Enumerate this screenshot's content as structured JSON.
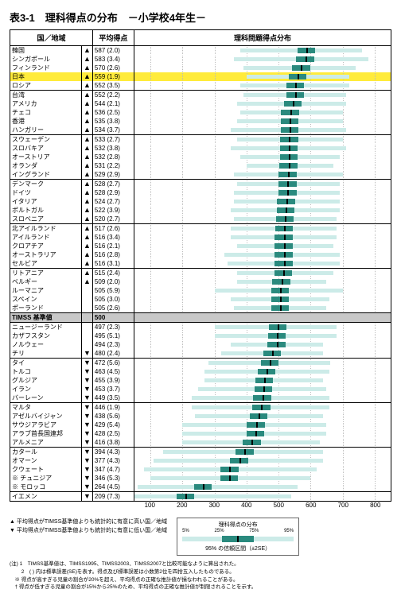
{
  "title": "表3-1　理科得点の分布　－小学校4年生－",
  "columns": {
    "country": "国／地域",
    "score": "平均得点",
    "dist": "理科問題得点分布"
  },
  "axis": {
    "min": 50,
    "max": 850,
    "ticks": [
      100,
      200,
      300,
      400,
      500,
      600,
      700,
      800
    ]
  },
  "colors": {
    "dist_fill": "#ccebe8",
    "ci_fill": "#2a8a7e",
    "mean_fill": "#000000",
    "highlight_bg": "#ffeb3b",
    "benchmark_bg": "#c8c8c8",
    "grid": "#bbbbbb"
  },
  "rows": [
    {
      "c": "韓国",
      "m": "▲",
      "s": 587,
      "se": "(2.0)",
      "lo": 380,
      "hi": 760,
      "sep": true
    },
    {
      "c": "シンガポール",
      "m": "▲",
      "s": 583,
      "se": "(3.4)",
      "lo": 360,
      "hi": 780
    },
    {
      "c": "フィンランド",
      "m": "▲",
      "s": 570,
      "se": "(2.6)",
      "lo": 390,
      "hi": 740
    },
    {
      "c": "日本",
      "m": "▲",
      "s": 559,
      "se": "(1.9)",
      "lo": 400,
      "hi": 720,
      "hl": true
    },
    {
      "c": "ロシア",
      "m": "▲",
      "s": 552,
      "se": "(3.5)",
      "lo": 380,
      "hi": 720
    },
    {
      "c": "台湾",
      "m": "▲",
      "s": 552,
      "se": "(2.2)",
      "lo": 390,
      "hi": 710,
      "sep": true
    },
    {
      "c": "アメリカ",
      "m": "▲",
      "s": 544,
      "se": "(2.1)",
      "lo": 370,
      "hi": 710
    },
    {
      "c": "チェコ",
      "m": "▲",
      "s": 536,
      "se": "(2.5)",
      "lo": 380,
      "hi": 700
    },
    {
      "c": "香港",
      "m": "▲",
      "s": 535,
      "se": "(3.8)",
      "lo": 370,
      "hi": 700
    },
    {
      "c": "ハンガリー",
      "m": "▲",
      "s": 534,
      "se": "(3.7)",
      "lo": 350,
      "hi": 710
    },
    {
      "c": "スウェーデン",
      "m": "▲",
      "s": 533,
      "se": "(2.7)",
      "lo": 370,
      "hi": 700,
      "sep": true
    },
    {
      "c": "スロバキア",
      "m": "▲",
      "s": 532,
      "se": "(3.8)",
      "lo": 350,
      "hi": 710
    },
    {
      "c": "オーストリア",
      "m": "▲",
      "s": 532,
      "se": "(2.8)",
      "lo": 380,
      "hi": 690
    },
    {
      "c": "オランダ",
      "m": "▲",
      "s": 531,
      "se": "(2.2)",
      "lo": 400,
      "hi": 670
    },
    {
      "c": "イングランド",
      "m": "▲",
      "s": 529,
      "se": "(2.9)",
      "lo": 360,
      "hi": 700
    },
    {
      "c": "デンマーク",
      "m": "▲",
      "s": 528,
      "se": "(2.7)",
      "lo": 370,
      "hi": 690,
      "sep": true
    },
    {
      "c": "ドイツ",
      "m": "▲",
      "s": 528,
      "se": "(2.9)",
      "lo": 360,
      "hi": 690
    },
    {
      "c": "イタリア",
      "m": "▲",
      "s": 524,
      "se": "(2.7)",
      "lo": 360,
      "hi": 690
    },
    {
      "c": "ポルトガル",
      "m": "▲",
      "s": 522,
      "se": "(3.9)",
      "lo": 350,
      "hi": 690
    },
    {
      "c": "スロベニア",
      "m": "▲",
      "s": 520,
      "se": "(2.7)",
      "lo": 360,
      "hi": 680
    },
    {
      "c": "北アイルランド",
      "m": "▲",
      "s": 517,
      "se": "(2.6)",
      "lo": 350,
      "hi": 680,
      "sep": true
    },
    {
      "c": "アイルランド",
      "m": "▲",
      "s": 516,
      "se": "(3.4)",
      "lo": 350,
      "hi": 680
    },
    {
      "c": "クロアチア",
      "m": "▲",
      "s": 516,
      "se": "(2.1)",
      "lo": 370,
      "hi": 670
    },
    {
      "c": "オーストラリア",
      "m": "▲",
      "s": 516,
      "se": "(2.8)",
      "lo": 330,
      "hi": 690
    },
    {
      "c": "セルビア",
      "m": "▲",
      "s": 516,
      "se": "(3.1)",
      "lo": 340,
      "hi": 690
    },
    {
      "c": "リトアニア",
      "m": "▲",
      "s": 515,
      "se": "(2.4)",
      "lo": 370,
      "hi": 670,
      "sep": true
    },
    {
      "c": "ベルギー",
      "m": "▲",
      "s": 509,
      "se": "(2.0)",
      "lo": 370,
      "hi": 650
    },
    {
      "c": "ルーマニア",
      "m": "",
      "s": 505,
      "se": "(5.9)",
      "lo": 300,
      "hi": 700
    },
    {
      "c": "スペイン",
      "m": "",
      "s": 505,
      "se": "(3.0)",
      "lo": 350,
      "hi": 660
    },
    {
      "c": "ポーランド",
      "m": "",
      "s": 505,
      "se": "(2.6)",
      "lo": 360,
      "hi": 650
    },
    {
      "c": "TIMSS 基準値",
      "m": "",
      "s": 500,
      "se": "",
      "bench": true,
      "sep": true
    },
    {
      "c": "ニュージーランド",
      "m": "",
      "s": 497,
      "se": "(2.3)",
      "lo": 300,
      "hi": 680,
      "sep": true
    },
    {
      "c": "カザフスタン",
      "m": "",
      "s": 495,
      "se": "(5.1)",
      "lo": 300,
      "hi": 680
    },
    {
      "c": "ノルウェー",
      "m": "",
      "s": 494,
      "se": "(2.3)",
      "lo": 350,
      "hi": 640
    },
    {
      "c": "チリ",
      "m": "▼",
      "s": 480,
      "se": "(2.4)",
      "lo": 320,
      "hi": 640
    },
    {
      "c": "タイ",
      "m": "▼",
      "s": 472,
      "se": "(5.6)",
      "lo": 280,
      "hi": 660,
      "sep": true
    },
    {
      "c": "トルコ",
      "m": "▼",
      "s": 463,
      "se": "(4.5)",
      "lo": 270,
      "hi": 660
    },
    {
      "c": "グルジア",
      "m": "▼",
      "s": 455,
      "se": "(3.9)",
      "lo": 270,
      "hi": 640
    },
    {
      "c": "イラン",
      "m": "▼",
      "s": 453,
      "se": "(3.7)",
      "lo": 250,
      "hi": 650
    },
    {
      "c": "バーレーン",
      "m": "▼",
      "s": 449,
      "se": "(3.5)",
      "lo": 230,
      "hi": 660
    },
    {
      "c": "マルタ",
      "m": "▼",
      "s": 446,
      "se": "(1.9)",
      "lo": 230,
      "hi": 660,
      "sep": true
    },
    {
      "c": "アゼルバイジャン",
      "m": "▼",
      "s": 438,
      "se": "(5.6)",
      "lo": 240,
      "hi": 640
    },
    {
      "c": "サウジアラビア",
      "m": "▼",
      "s": 429,
      "se": "(5.4)",
      "lo": 200,
      "hi": 650
    },
    {
      "c": "アラブ首長国連邦",
      "m": "▼",
      "s": 428,
      "se": "(2.5)",
      "lo": 200,
      "hi": 650
    },
    {
      "c": "アルメニア",
      "m": "▼",
      "s": 416,
      "se": "(3.8)",
      "lo": 200,
      "hi": 630
    },
    {
      "c": "カタール",
      "m": "▼",
      "s": 394,
      "se": "(4.3)",
      "lo": 140,
      "hi": 640,
      "sep": true
    },
    {
      "c": "オマーン",
      "m": "▼",
      "s": 377,
      "se": "(4.3)",
      "lo": 110,
      "hi": 640
    },
    {
      "c": "クウェート",
      "m": "▼",
      "s": 347,
      "se": "(4.7)",
      "lo": 80,
      "hi": 620
    },
    {
      "c": "チュニジア",
      "m": "▼",
      "s": 346,
      "se": "(5.3)",
      "lo": 100,
      "hi": 600,
      "note": "※"
    },
    {
      "c": "モロッコ",
      "m": "▼",
      "s": 264,
      "se": "(4.5)",
      "lo": 60,
      "hi": 560,
      "note": "※"
    },
    {
      "c": "イエメン",
      "m": "▼",
      "s": 209,
      "se": "(7.3)",
      "lo": 50,
      "hi": 540,
      "sep": true,
      "sepAfter": true
    }
  ],
  "legend": {
    "up": "▲ 平均得点がTIMSS基準値よりも統計的に有意に高い国／地域",
    "down": "▼ 平均得点がTIMSS基準値よりも統計的に有意に低い国／地域",
    "dist_title": "理科得点の分布",
    "ci_label": "95% の信頼区間（±2SE）",
    "pcts": [
      "5%",
      "25%",
      "75%",
      "95%"
    ]
  },
  "notes": [
    "(注) 1　TIMSS基準値は、TIMSS1995、TIMSS2003、TIMSS2007と比較可能なように算出された。",
    "　　 2　( ) 内は標準誤差(SE)を表す。得点及び標準誤差は小数第2位を四捨五入したものである。",
    "　※ 得点が高すぎる児童の割合が20%を超え、平均得点の正確な推計値が損なわれることがある。",
    "　† 得点が低すぎる児童の割合が15%から25%のため、平均得点の正確な推計値が制限されることを示す。"
  ]
}
